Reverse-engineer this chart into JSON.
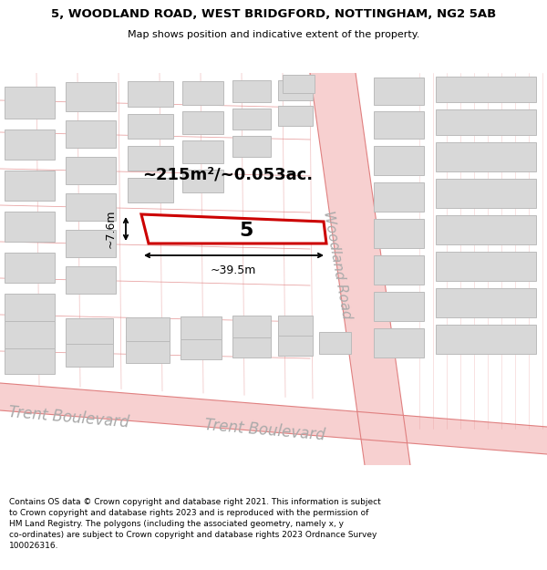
{
  "title_line1": "5, WOODLAND ROAD, WEST BRIDGFORD, NOTTINGHAM, NG2 5AB",
  "title_line2": "Map shows position and indicative extent of the property.",
  "footer_text": "Contains OS data © Crown copyright and database right 2021. This information is subject\nto Crown copyright and database rights 2023 and is reproduced with the permission of\nHM Land Registry. The polygons (including the associated geometry, namely x, y\nco-ordinates) are subject to Crown copyright and database rights 2023 Ordnance Survey\n100026316.",
  "map_bg": "#eeeeee",
  "road_fill": "#f7d0d0",
  "road_edge": "#e08080",
  "building_fill": "#d8d8d8",
  "building_edge": "#bbbbbb",
  "highlight_fill": "#ffffff",
  "highlight_edge": "#cc0000",
  "label_color": "#aaaaaa",
  "area_label": "~215m²/~0.053ac.",
  "number_label": "5",
  "dim_width": "~39.5m",
  "dim_height": "~7.6m",
  "woodland_road_label": "Woodland Road",
  "trent_blvd_label1": "Trent Boulevard",
  "trent_blvd_label2": "Trent Boulevard",
  "title_fontsize": 9.5,
  "subtitle_fontsize": 8,
  "footer_fontsize": 6.5,
  "area_fontsize": 13,
  "number_fontsize": 16,
  "dim_fontsize": 9,
  "street_fontsize": 11,
  "trent_fontsize": 12
}
